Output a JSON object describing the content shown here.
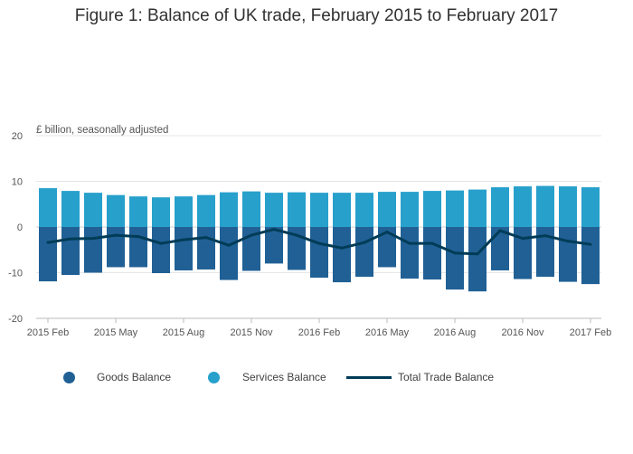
{
  "chart_data": {
    "type": "bar",
    "title": "Figure 1: Balance of UK trade, February 2015 to February 2017",
    "ylabel": "£ billion, seasonally adjusted",
    "xlabel": "",
    "ylim": [
      -20,
      20
    ],
    "yticks": [
      20,
      10,
      0,
      -10,
      -20
    ],
    "stacked": true,
    "categories": [
      "2015 Feb",
      "2015 Mar",
      "2015 Apr",
      "2015 May",
      "2015 Jun",
      "2015 Jul",
      "2015 Aug",
      "2015 Sep",
      "2015 Oct",
      "2015 Nov",
      "2015 Dec",
      "2016 Jan",
      "2016 Feb",
      "2016 Mar",
      "2016 Apr",
      "2016 May",
      "2016 Jun",
      "2016 Jul",
      "2016 Aug",
      "2016 Sep",
      "2016 Oct",
      "2016 Nov",
      "2016 Dec",
      "2017 Jan",
      "2017 Feb"
    ],
    "x_tick_labels": [
      {
        "index": 0,
        "label": "2015 Feb"
      },
      {
        "index": 3,
        "label": "2015 May"
      },
      {
        "index": 6,
        "label": "2015 Aug"
      },
      {
        "index": 9,
        "label": "2015 Nov"
      },
      {
        "index": 12,
        "label": "2016 Feb"
      },
      {
        "index": 15,
        "label": "2016 May"
      },
      {
        "index": 18,
        "label": "2016 Aug"
      },
      {
        "index": 21,
        "label": "2016 Nov"
      },
      {
        "index": 24,
        "label": "2017 Feb"
      }
    ],
    "series": [
      {
        "name": "Goods Balance",
        "kind": "bar",
        "color": "#206095",
        "values": [
          -11.9,
          -10.5,
          -10.0,
          -8.8,
          -8.8,
          -10.1,
          -9.5,
          -9.3,
          -11.6,
          -9.6,
          -8.0,
          -9.4,
          -11.1,
          -12.1,
          -10.9,
          -8.8,
          -11.3,
          -11.5,
          -13.7,
          -14.1,
          -9.5,
          -11.4,
          -10.9,
          -12.0,
          -12.5
        ]
      },
      {
        "name": "Services Balance",
        "kind": "bar",
        "color": "#27a0cc",
        "values": [
          8.5,
          7.9,
          7.5,
          7.0,
          6.7,
          6.5,
          6.7,
          7.0,
          7.6,
          7.8,
          7.5,
          7.6,
          7.5,
          7.5,
          7.5,
          7.7,
          7.7,
          7.9,
          8.0,
          8.2,
          8.7,
          8.9,
          9.0,
          8.9,
          8.7
        ]
      },
      {
        "name": "Total Trade Balance",
        "kind": "line",
        "color": "#003c57",
        "values": [
          -3.4,
          -2.6,
          -2.5,
          -1.8,
          -2.1,
          -3.6,
          -2.8,
          -2.3,
          -4.0,
          -1.8,
          -0.5,
          -1.8,
          -3.6,
          -4.6,
          -3.4,
          -1.1,
          -3.6,
          -3.6,
          -5.7,
          -5.9,
          -0.8,
          -2.5,
          -1.9,
          -3.1,
          -3.8
        ]
      }
    ],
    "legend": [
      {
        "label": "Goods Balance",
        "symbol": "dot",
        "color": "#206095"
      },
      {
        "label": "Services Balance",
        "symbol": "dot",
        "color": "#27a0cc"
      },
      {
        "label": "Total Trade Balance",
        "symbol": "line",
        "color": "#003c57"
      }
    ],
    "legend_position": "bottom",
    "grid": true
  }
}
